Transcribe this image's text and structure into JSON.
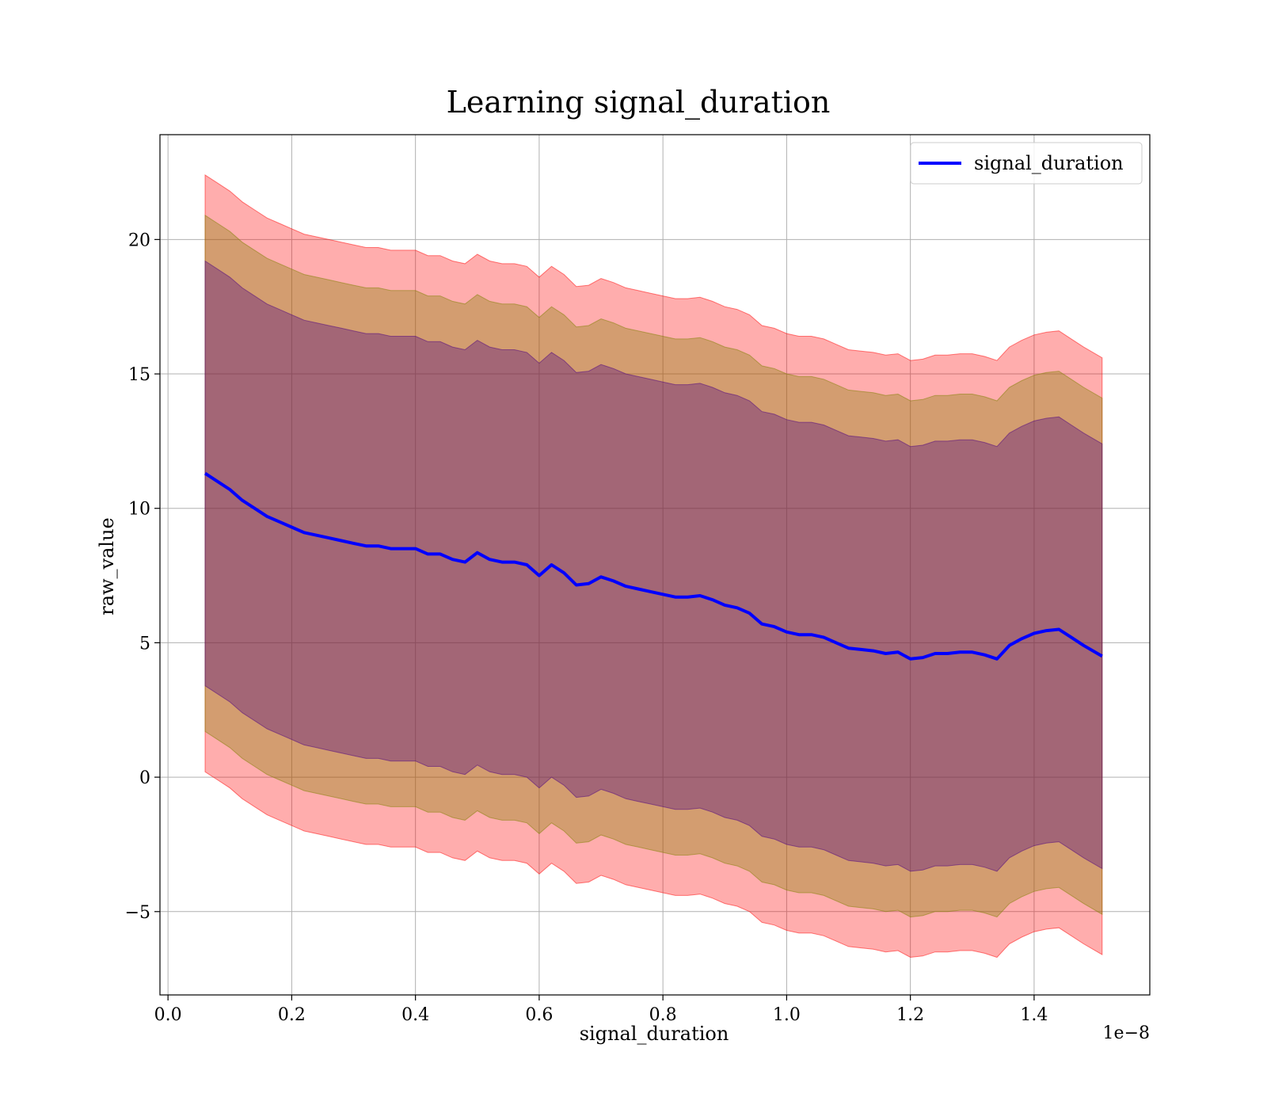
{
  "chart_data": {
    "type": "line",
    "title": "Learning signal_duration",
    "xlabel": "signal_duration",
    "ylabel": "raw_value",
    "x_offset_text": "1e−8",
    "x_scale_exponent": -8,
    "xlim": [
      -0.013,
      1.587
    ],
    "ylim": [
      -8.1,
      23.9
    ],
    "x_ticks": [
      0.0,
      0.2,
      0.4,
      0.6,
      0.8,
      1.0,
      1.2,
      1.4
    ],
    "x_tick_labels": [
      "0.0",
      "0.2",
      "0.4",
      "0.6",
      "0.8",
      "1.0",
      "1.2",
      "1.4"
    ],
    "y_ticks": [
      -5,
      0,
      5,
      10,
      15,
      20
    ],
    "y_tick_labels": [
      "−5",
      "0",
      "5",
      "10",
      "15",
      "20"
    ],
    "grid": true,
    "legend": {
      "position": "top-right",
      "entries": [
        "signal_duration"
      ]
    },
    "colors": {
      "line": "#0000ff",
      "band_outer": "#ff0000",
      "band_middle": "#808000",
      "band_inner": "#4b0082"
    },
    "series": [
      {
        "name": "signal_duration",
        "role": "line",
        "x": [
          0.06,
          0.08,
          0.1,
          0.12,
          0.14,
          0.16,
          0.18,
          0.2,
          0.22,
          0.24,
          0.26,
          0.28,
          0.3,
          0.32,
          0.34,
          0.36,
          0.38,
          0.4,
          0.42,
          0.44,
          0.46,
          0.48,
          0.5,
          0.52,
          0.54,
          0.56,
          0.58,
          0.6,
          0.62,
          0.64,
          0.66,
          0.68,
          0.7,
          0.72,
          0.74,
          0.76,
          0.78,
          0.8,
          0.82,
          0.84,
          0.86,
          0.88,
          0.9,
          0.92,
          0.94,
          0.96,
          0.98,
          1.0,
          1.02,
          1.04,
          1.06,
          1.08,
          1.1,
          1.12,
          1.14,
          1.16,
          1.18,
          1.2,
          1.22,
          1.24,
          1.26,
          1.28,
          1.3,
          1.32,
          1.34,
          1.36,
          1.38,
          1.4,
          1.42,
          1.44,
          1.46,
          1.48,
          1.51
        ],
        "y": [
          11.3,
          11.0,
          10.7,
          10.3,
          10.0,
          9.7,
          9.5,
          9.3,
          9.1,
          9.0,
          8.9,
          8.8,
          8.7,
          8.6,
          8.6,
          8.5,
          8.5,
          8.5,
          8.3,
          8.3,
          8.1,
          8.0,
          8.35,
          8.1,
          8.0,
          8.0,
          7.9,
          7.5,
          7.9,
          7.6,
          7.15,
          7.2,
          7.45,
          7.3,
          7.1,
          7.0,
          6.9,
          6.8,
          6.7,
          6.7,
          6.75,
          6.6,
          6.4,
          6.3,
          6.1,
          5.7,
          5.6,
          5.4,
          5.3,
          5.3,
          5.2,
          5.0,
          4.8,
          4.75,
          4.7,
          4.6,
          4.65,
          4.4,
          4.45,
          4.6,
          4.6,
          4.65,
          4.65,
          4.55,
          4.4,
          4.9,
          5.15,
          5.35,
          5.45,
          5.5,
          5.2,
          4.9,
          4.5
        ]
      },
      {
        "name": "",
        "role": "band",
        "style": "band_outer",
        "upper_offset": 11.1,
        "lower_offset": -11.1
      },
      {
        "name": "",
        "role": "band",
        "style": "band_middle",
        "upper_offset": 9.6,
        "lower_offset": -9.6
      },
      {
        "name": "",
        "role": "band",
        "style": "band_inner",
        "upper_offset": 7.9,
        "lower_offset": -7.9
      }
    ]
  }
}
